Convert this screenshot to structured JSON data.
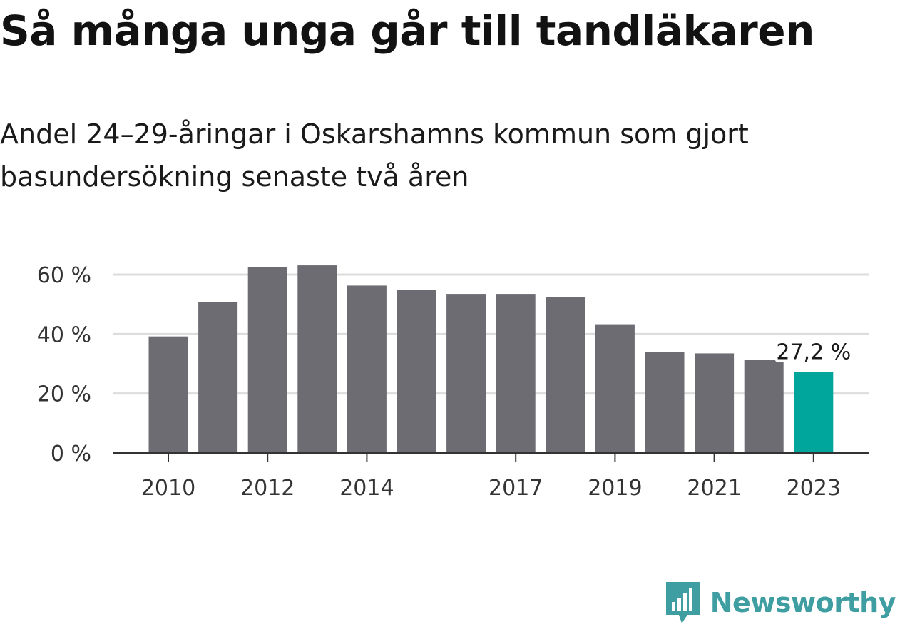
{
  "title": "Så många unga går till tandläkaren",
  "subtitle": "Andel 24–29-åringar i Oskarshamns kommun som gjort basundersökning senaste två åren",
  "brand": {
    "name": "Newsworthy",
    "icon": "newsworthy-logo-icon",
    "color": "#3f9ea1"
  },
  "chart_data": {
    "type": "bar",
    "categories": [
      "2010",
      "2011",
      "2012",
      "2013",
      "2014",
      "2015",
      "2016",
      "2017",
      "2018",
      "2019",
      "2020",
      "2021",
      "2022",
      "2023"
    ],
    "values": [
      39.2,
      50.7,
      62.6,
      63.1,
      56.3,
      54.8,
      53.5,
      53.5,
      52.4,
      43.3,
      34.0,
      33.5,
      31.4,
      27.2
    ],
    "x_tick_labels": [
      "2010",
      "2012",
      "2014",
      "2017",
      "2019",
      "2021",
      "2023"
    ],
    "y_ticks": [
      0,
      20,
      40,
      60
    ],
    "y_tick_labels": [
      "0 %",
      "20 %",
      "40 %",
      "60 %"
    ],
    "ylim": [
      0,
      66
    ],
    "grid": true,
    "highlight": {
      "category": "2023",
      "label": "27,2 %"
    },
    "colors": {
      "bar": "#6d6c72",
      "highlight": "#00a59b",
      "grid": "#dcdcdc",
      "axis": "#333333"
    },
    "title": "",
    "xlabel": "",
    "ylabel": ""
  }
}
